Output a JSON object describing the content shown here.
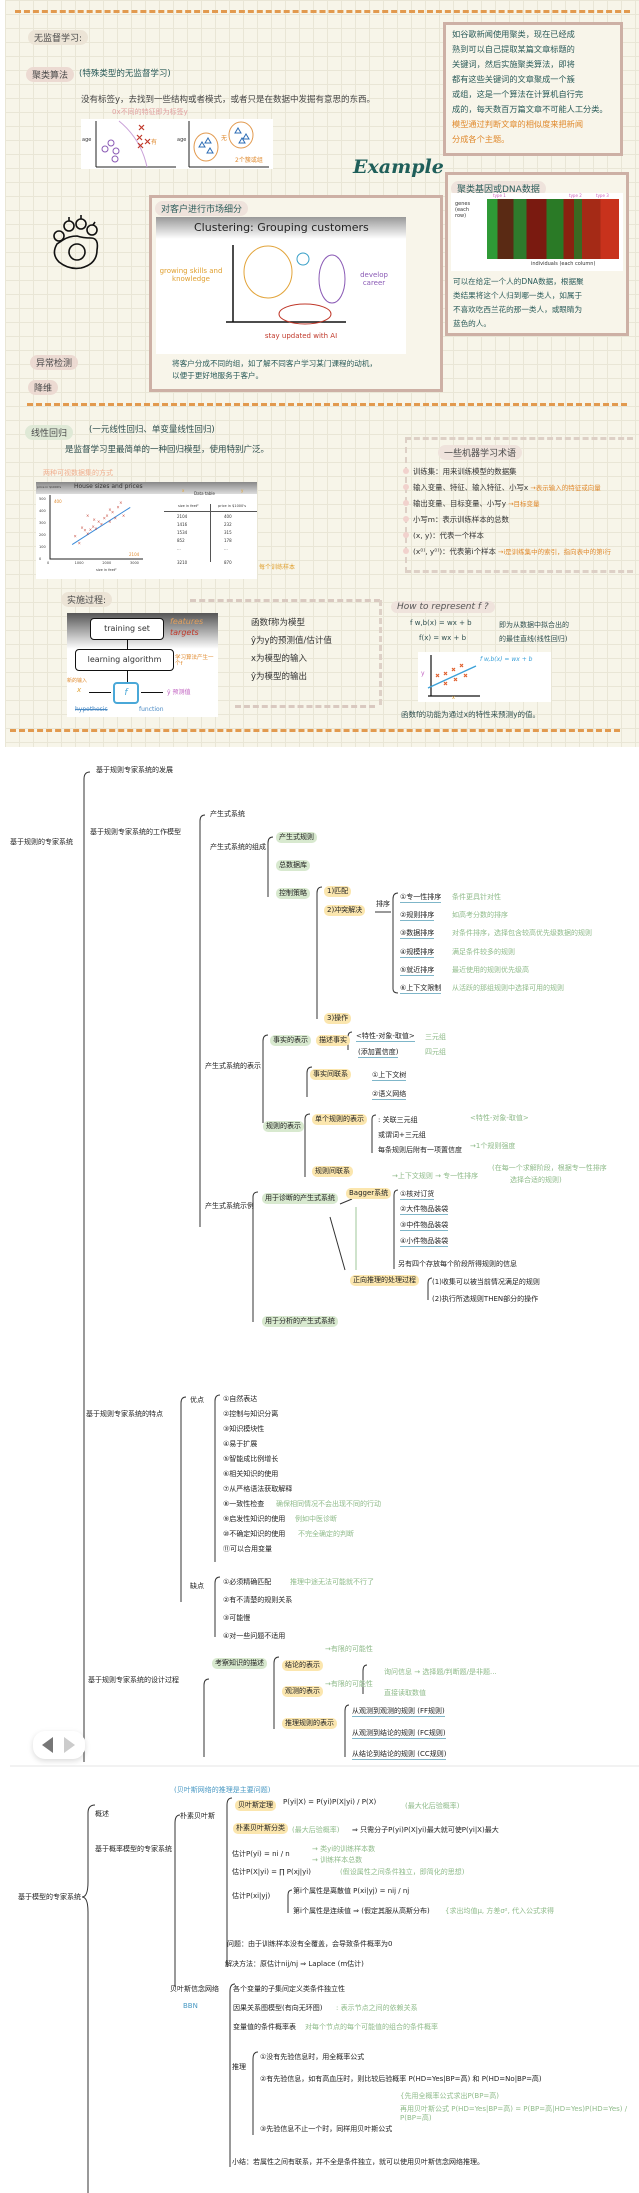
{
  "panel": {
    "unsupervised": "无监督学习:",
    "clustering_title": "聚类算法",
    "clustering_paren": "(特殊类型的无监督学习)",
    "clustering_desc": "没有标签y，去找到一些结构或者模式，或者只是在数据中发掘有意思的东西。",
    "scatter": {
      "note": "0x不同的特征即为标签y",
      "axis": "age",
      "axis2": "age",
      "yes": "有",
      "no": "无",
      "groups": "2个簇或组"
    },
    "news_box": {
      "lines": [
        "如谷歌新闻使用聚类，现在已经成",
        "熟到可以自己提取某篇文章标题的",
        "关键词，然后实施聚类算法，即将",
        "都有这些关键词的文章聚成一个簇",
        "或组，这是一个算法在计算机自行完",
        "成的，每天数百万篇文章不可能人工分类。"
      ],
      "orange_lines": [
        "模型通过判断文章的相似度来把新闻",
        "分成各个主题。"
      ]
    },
    "example": "Example",
    "dna_box": {
      "title": "聚类基因或DNA数据",
      "genes": "genes (each row)",
      "individuals": "individuals (each column)",
      "types": [
        "type 1",
        "type 2",
        "type 3"
      ],
      "lines": [
        "可以在给定一个人的DNA数据，根据聚",
        "类结果将这个人归到哪一类人，如属于",
        "不喜欢吃西兰花的那一类人，或眼睛为",
        "蓝色的人。"
      ]
    },
    "market_box": {
      "title": "对客户进行市场细分",
      "img_title": "Clustering: Grouping customers",
      "growing": "growing skills and knowledge",
      "develop": "develop career",
      "stay": "stay updated with AI",
      "lines": [
        "将客户分成不同的组，如了解不同客户学习某门课程的动机，",
        "以便于更好地服务于客户。"
      ]
    },
    "anomaly": "异常检测",
    "dimred": "降维",
    "linreg_title": "线性回归",
    "linreg_paren": "(一元线性回归、单变量线性回归)",
    "linreg_desc": "是监督学习里最简单的一种回归模型，使用特别广泛。",
    "linreg_note": "两种可视数据集的方式",
    "house": {
      "title": "House sizes and prices",
      "ylabel": "price in $1000's",
      "xlabel": "size in feet²",
      "yticks": [
        "500",
        "400",
        "300",
        "200",
        "100",
        "0"
      ],
      "xticks": [
        "0",
        "1000",
        "2000",
        "3000"
      ],
      "mark400": "400",
      "mark2104": "2104",
      "table_title": "Data table",
      "x_mark": "x",
      "y_mark": "y",
      "col1": "size in feet²",
      "col2": "price in $1000's",
      "rows": [
        [
          "2104",
          "400"
        ],
        [
          "1416",
          "232"
        ],
        [
          "1534",
          "315"
        ],
        [
          "852",
          "178"
        ],
        [
          "...",
          "..."
        ],
        [
          "3210",
          "870"
        ]
      ],
      "row_note": "每个训练样本"
    },
    "terms": {
      "title": "一些机器学习术语",
      "items": [
        {
          "text": "训练集：用来训练模型的数据集",
          "note": ""
        },
        {
          "text": "输入变量、特征、输入特征、小写x",
          "note": "→表示输入的特征或向量"
        },
        {
          "text": "输出变量、目标变量、小写y",
          "note": "→目标变量"
        },
        {
          "text": "小写m：表示训练样本的总数",
          "note": ""
        },
        {
          "text": "(x, y)：代表一个样本",
          "note": ""
        },
        {
          "text": "(x⁽ⁱ⁾, y⁽ⁱ⁾)：代表第i个样本",
          "note": "→i是训练集中的索引，指向表中的第i行"
        }
      ]
    },
    "process": {
      "title": "实施过程:",
      "training_set": "training set",
      "features": "features",
      "targets": "targets",
      "learning_algorithm": "learning algorithm",
      "la_note": "学习算法产生一个f",
      "x": "x",
      "x_note": "新的输入",
      "f": "f",
      "y": "ŷ 预测值",
      "hypothesis": "hypothesis",
      "function": "function",
      "lines": [
        "函数f称为模型",
        "ŷ为y的预测值/估计值",
        "x为模型的输入",
        "ŷ为模型的输出"
      ]
    },
    "represent": {
      "title": "How to represent f ?",
      "f1": "f w,b(x) = wx + b",
      "f2": "f(x) = wx + b",
      "brace_text": [
        "即为从数据中拟合出的",
        "的最佳直线(线性回归)"
      ],
      "chart_formula": "f w,b(x) = wx + b",
      "ylabel": "y",
      "xlabel": "x",
      "bottom": "函数f的功能为通过x的特性来预测y的值。"
    }
  },
  "mindmap1": [
    {
      "text": "基于规则专家系统的发展",
      "kind": "plain"
    },
    {
      "text": "基于规则的专家系统",
      "kind": "plain"
    },
    {
      "text": "基于规则专家系统的工作模型",
      "kind": "plain"
    },
    {
      "text": "产生式系统",
      "kind": "plain"
    },
    {
      "text": "产生式系统的组成",
      "kind": "plain"
    },
    {
      "text": "产生式规则",
      "kind": "green"
    },
    {
      "text": "总数据库",
      "kind": "green"
    },
    {
      "text": "控制策略",
      "kind": "green"
    },
    {
      "text": "1)匹配",
      "kind": "yellow"
    },
    {
      "text": "2)冲突解决",
      "kind": "yellow"
    },
    {
      "text": "排序",
      "kind": "plain"
    },
    {
      "text": "①专一性排序",
      "kind": "ul"
    },
    {
      "text": "②规则排序",
      "kind": "ul"
    },
    {
      "text": "③数据排序",
      "kind": "ul"
    },
    {
      "text": "④规模排序",
      "kind": "ul"
    },
    {
      "text": "⑤就近排序",
      "kind": "ul"
    },
    {
      "text": "⑥上下文限制",
      "kind": "ul"
    },
    {
      "text": "条件更具针对性",
      "kind": "note"
    },
    {
      "text": "如高考分数的排序",
      "kind": "note"
    },
    {
      "text": "对条件排序，选择包含较高优先级数据的规则",
      "kind": "note"
    },
    {
      "text": "满足条件较多的规则",
      "kind": "note"
    },
    {
      "text": "最近使用的规则优先级高",
      "kind": "note"
    },
    {
      "text": "从活跃的那组规则中选择可用的规则",
      "kind": "note"
    },
    {
      "text": "3)操作",
      "kind": "yellow"
    },
    {
      "text": "产生式系统的表示",
      "kind": "plain"
    },
    {
      "text": "事实的表示",
      "kind": "green"
    },
    {
      "text": "描述事实",
      "kind": "yellow"
    },
    {
      "text": "<特性-对象-取值>",
      "kind": "ul"
    },
    {
      "text": "(添加置信度)",
      "kind": "ul"
    },
    {
      "text": "三元组",
      "kind": "note"
    },
    {
      "text": "四元组",
      "kind": "note"
    },
    {
      "text": "事实间联系",
      "kind": "yellow"
    },
    {
      "text": "①上下文树",
      "kind": "ul"
    },
    {
      "text": "②语义网络",
      "kind": "ul"
    },
    {
      "text": "规则的表示",
      "kind": "green"
    },
    {
      "text": "单个规则的表示",
      "kind": "yellow"
    },
    {
      "text": ": 关联三元组",
      "kind": "plain"
    },
    {
      "text": "<特性-对象-取值>",
      "kind": "note"
    },
    {
      "text": "或谓词+三元组",
      "kind": "plain"
    },
    {
      "text": "每条规则后附有一项置信度",
      "kind": "plain"
    },
    {
      "text": "→1个规则强度",
      "kind": "note"
    },
    {
      "text": "规则间联系",
      "kind": "yellow"
    },
    {
      "text": "→上下文规则 → 专一性排序",
      "kind": "note"
    },
    {
      "text": "(在每一个求解阶段，根据专一性排序",
      "kind": "note"
    },
    {
      "text": "选择合适的规则)",
      "kind": "note"
    },
    {
      "text": "产生式系统示例",
      "kind": "plain"
    },
    {
      "text": "用于诊断的产生式系统",
      "kind": "green"
    },
    {
      "text": "Bagger系统",
      "kind": "yellow"
    },
    {
      "text": "①核对订货",
      "kind": "ul"
    },
    {
      "text": "②大件物品装袋",
      "kind": "ul"
    },
    {
      "text": "③中件物品装袋",
      "kind": "ul"
    },
    {
      "text": "④小件物品装袋",
      "kind": "ul"
    },
    {
      "text": "另有四个存放每个阶段所得规则的信息",
      "kind": "plain"
    },
    {
      "text": "正向推理的处理过程",
      "kind": "yellow"
    },
    {
      "text": "(1)收集可以被当前情况满足的规则",
      "kind": "plain"
    },
    {
      "text": "(2)执行所选规则THEN部分的操作",
      "kind": "plain"
    },
    {
      "text": "用于分析的产生式系统",
      "kind": "green"
    },
    {
      "text": "基于规则专家系统的特点",
      "kind": "plain"
    },
    {
      "text": "优点",
      "kind": "plain"
    },
    {
      "text": "①自然表达",
      "kind": "plain"
    },
    {
      "text": "②控制与知识分离",
      "kind": "plain"
    },
    {
      "text": "③知识模块性",
      "kind": "plain"
    },
    {
      "text": "④易于扩展",
      "kind": "plain"
    },
    {
      "text": "⑤智能成比例增长",
      "kind": "plain"
    },
    {
      "text": "⑥相关知识的使用",
      "kind": "plain"
    },
    {
      "text": "⑦从严格语法获取解释",
      "kind": "plain"
    },
    {
      "text": "⑧一致性检查",
      "kind": "plain"
    },
    {
      "text": "⑨启发性知识的使用",
      "kind": "plain"
    },
    {
      "text": "⑩不确定知识的使用",
      "kind": "plain"
    },
    {
      "text": "⑪可以合用变量",
      "kind": "plain"
    },
    {
      "text": "确保相同情况不会出现不同的行动",
      "kind": "note"
    },
    {
      "text": "例如中医诊断",
      "kind": "note"
    },
    {
      "text": "不完全确定的判断",
      "kind": "note"
    },
    {
      "text": "缺点",
      "kind": "plain"
    },
    {
      "text": "①必须精确匹配",
      "kind": "plain"
    },
    {
      "text": "②有不清楚的规则关系",
      "kind": "plain"
    },
    {
      "text": "③可能慢",
      "kind": "plain"
    },
    {
      "text": "④对一些问题不适用",
      "kind": "plain"
    },
    {
      "text": "推理中途无法可能就不行了",
      "kind": "note"
    },
    {
      "text": "基于规则专家系统的设计过程",
      "kind": "plain"
    },
    {
      "text": "考察知识的描述",
      "kind": "green"
    },
    {
      "text": "结论的表示",
      "kind": "yellow"
    },
    {
      "text": "→有限的可能性",
      "kind": "note"
    },
    {
      "text": "观测的表示",
      "kind": "yellow"
    },
    {
      "text": "→有限的可能性",
      "kind": "note"
    },
    {
      "text": "询问信息 → 选择题/判断题/是非题...",
      "kind": "note"
    },
    {
      "text": "直接读取数值",
      "kind": "note"
    },
    {
      "text": "推理规则的表示",
      "kind": "yellow"
    },
    {
      "text": "从观测到观测的规则 (FF规则)",
      "kind": "ul"
    },
    {
      "text": "从观测到结论的规则 (FC规则)",
      "kind": "ul"
    },
    {
      "text": "从结论到结论的规则 (CC规则)",
      "kind": "ul"
    }
  ],
  "mindmap2": [
    {
      "text": "基于模型的专家系统",
      "kind": "plain"
    },
    {
      "text": "概述",
      "kind": "plain"
    },
    {
      "text": "基于概率模型的专家系统",
      "kind": "plain"
    },
    {
      "text": "(贝叶斯网络的推理是主要问题)",
      "kind": "blue"
    },
    {
      "text": "朴素贝叶斯",
      "kind": "plain"
    },
    {
      "text": "贝叶斯定理",
      "kind": "yellow"
    },
    {
      "text": "P(yi|X) = P(yi)P(X|yi) / P(X)",
      "kind": "plain"
    },
    {
      "text": "(最大化后验概率)",
      "kind": "note"
    },
    {
      "text": "朴素贝叶斯分类",
      "kind": "yellow"
    },
    {
      "text": "(最大后验概率)",
      "kind": "note"
    },
    {
      "text": "⇒ 只需分子P(yi)P(X|yi)最大就可使P(yi|X)最大",
      "kind": "plain"
    },
    {
      "text": "估计P(yi) = ni / n",
      "kind": "plain"
    },
    {
      "text": "→ 类yi的训练样本数",
      "kind": "note"
    },
    {
      "text": "→ 训练样本总数",
      "kind": "note"
    },
    {
      "text": "估计P(X|yi) = ∏ P(xj|yi)",
      "kind": "plain"
    },
    {
      "text": "(假设属性之间条件独立，即简化的思想)",
      "kind": "note"
    },
    {
      "text": "估计P(xi|yj)",
      "kind": "plain"
    },
    {
      "text": "第i个属性是离散值 P(xi|yj) = nij / nj",
      "kind": "plain"
    },
    {
      "text": "第i个属性是连续值 ⇒ (假定其服从高斯分布)",
      "kind": "plain"
    },
    {
      "text": "{求出均值μ, 方差σ², 代入公式求得",
      "kind": "note"
    },
    {
      "text": "问题：由于训练样本没有全覆盖，会导致条件概率为0",
      "kind": "plain"
    },
    {
      "text": "解决方法：原估计nij/nj ⇒ Laplace (m估计)",
      "kind": "plain"
    },
    {
      "text": "贝叶斯信念网络",
      "kind": "plain"
    },
    {
      "text": "BBN",
      "kind": "blue"
    },
    {
      "text": "各个变量的子集间定义类条件独立性",
      "kind": "plain"
    },
    {
      "text": "因果关系图模型(有向无环图)",
      "kind": "plain"
    },
    {
      "text": ": 表示节点之间的依赖关系",
      "kind": "note"
    },
    {
      "text": "变量值的条件概率表",
      "kind": "plain"
    },
    {
      "text": "对每个节点的每个可能值的组合的条件概率",
      "kind": "note"
    },
    {
      "text": "推理",
      "kind": "plain"
    },
    {
      "text": "①没有先验信息时，用全概率公式",
      "kind": "plain"
    },
    {
      "text": "②有先验信息，如有高血压时，则比较后验概率 P(HD=Yes|BP=高) 和 P(HD=No|BP=高)",
      "kind": "plain"
    },
    {
      "text": "{先用全概率公式求出P(BP=高)",
      "kind": "note"
    },
    {
      "text": "再用贝叶斯公式 P(HD=Yes|BP=高) = P(BP=高|HD=Yes)P(HD=Yes) / P(BP=高)",
      "kind": "note"
    },
    {
      "text": "③先验信息不止一个时，同样用贝叶斯公式",
      "kind": "plain"
    },
    {
      "text": "小结：若属性之间有联系，并不全是条件独立，就可以使用贝叶斯信念网络推理。",
      "kind": "plain"
    }
  ],
  "carousel": {
    "prev_icon": "triangle-left-icon",
    "next_icon": "triangle-right-icon"
  },
  "colors": {
    "accent_teal": "#2b5c5a",
    "accent_orange": "#e08a2e",
    "pill_green": "#d8e9cf",
    "pill_yellow": "#fbe6ae",
    "note_green": "#8fbb8a",
    "box_border": "#cdb0a5"
  }
}
